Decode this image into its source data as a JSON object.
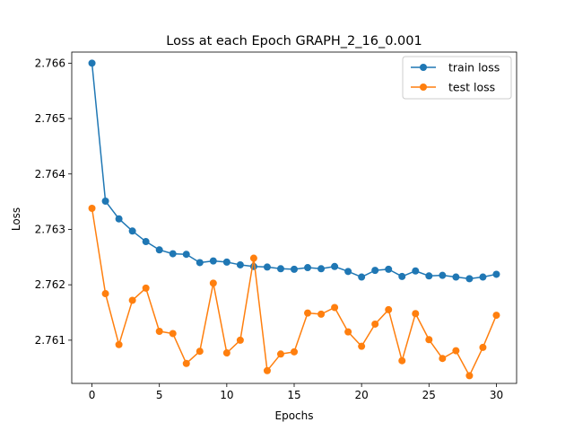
{
  "chart_data": {
    "type": "line",
    "title": "Loss at each Epoch GRAPH_2_16_0.001",
    "xlabel": "Epochs",
    "ylabel": "Loss",
    "xlim": [
      -1.5,
      31.5
    ],
    "ylim": [
      2.76022,
      2.7662
    ],
    "xticks": [
      0,
      5,
      10,
      15,
      20,
      25,
      30
    ],
    "yticks": [
      2.761,
      2.762,
      2.763,
      2.764,
      2.765,
      2.766
    ],
    "grid": false,
    "legend_position": "top-right",
    "x": [
      0,
      1,
      2,
      3,
      4,
      5,
      6,
      7,
      8,
      9,
      10,
      11,
      12,
      13,
      14,
      15,
      16,
      17,
      18,
      19,
      20,
      21,
      22,
      23,
      24,
      25,
      26,
      27,
      28,
      29,
      30
    ],
    "series": [
      {
        "name": "train loss",
        "color": "#1f77b4",
        "values": [
          2.766,
          2.76351,
          2.76319,
          2.76297,
          2.76278,
          2.76263,
          2.76256,
          2.76255,
          2.7624,
          2.76243,
          2.76241,
          2.76236,
          2.76233,
          2.76232,
          2.76229,
          2.76228,
          2.76231,
          2.76229,
          2.76233,
          2.76224,
          2.76214,
          2.76226,
          2.76228,
          2.76215,
          2.76225,
          2.76216,
          2.76217,
          2.76214,
          2.76211,
          2.76214,
          2.76219
        ]
      },
      {
        "name": "test loss",
        "color": "#ff7f0e",
        "values": [
          2.76338,
          2.76184,
          2.76092,
          2.76172,
          2.76194,
          2.76116,
          2.76112,
          2.76058,
          2.7608,
          2.76203,
          2.76077,
          2.761,
          2.76248,
          2.76045,
          2.76075,
          2.76079,
          2.76149,
          2.76147,
          2.76159,
          2.76115,
          2.76089,
          2.76129,
          2.76155,
          2.76063,
          2.76148,
          2.76101,
          2.76067,
          2.76081,
          2.76036,
          2.76087,
          2.76145
        ]
      }
    ]
  }
}
